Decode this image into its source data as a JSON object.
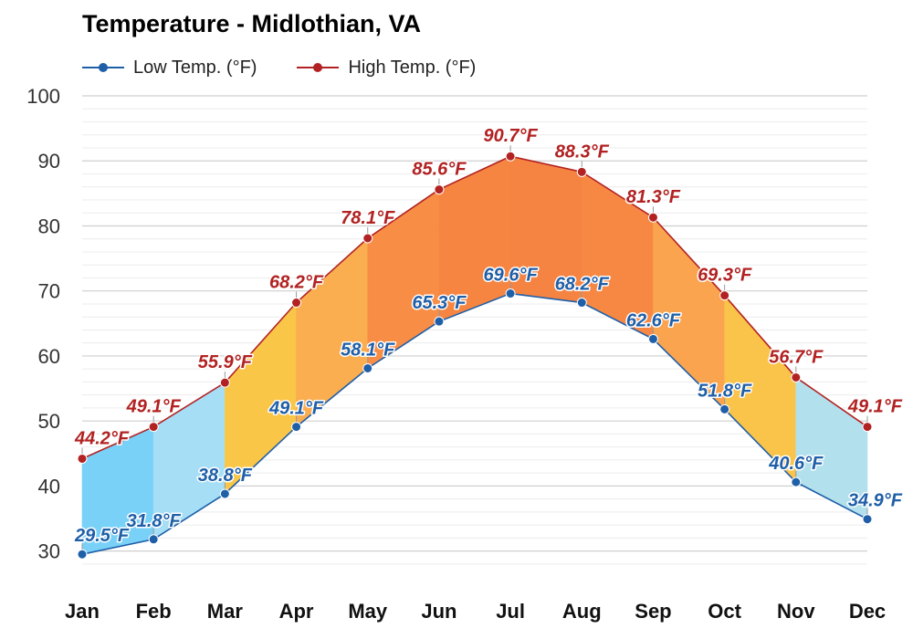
{
  "chart_data": {
    "type": "line",
    "title": "Temperature - Midlothian, VA",
    "categories": [
      "Jan",
      "Feb",
      "Mar",
      "Apr",
      "May",
      "Jun",
      "Jul",
      "Aug",
      "Sep",
      "Oct",
      "Nov",
      "Dec"
    ],
    "series": [
      {
        "name": "Low Temp. (°F)",
        "color": "#1f5fa8",
        "values": [
          29.5,
          31.8,
          38.8,
          49.1,
          58.1,
          65.3,
          69.6,
          68.2,
          62.6,
          51.8,
          40.6,
          34.9
        ],
        "labels": [
          "29.5°F",
          "31.8°F",
          "38.8°F",
          "49.1°F",
          "58.1°F",
          "65.3°F",
          "69.6°F",
          "68.2°F",
          "62.6°F",
          "51.8°F",
          "40.6°F",
          "34.9°F"
        ]
      },
      {
        "name": "High Temp. (°F)",
        "color": "#b22222",
        "values": [
          44.2,
          49.1,
          55.9,
          68.2,
          78.1,
          85.6,
          90.7,
          88.3,
          81.3,
          69.3,
          56.7,
          49.1
        ],
        "labels": [
          "44.2°F",
          "49.1°F",
          "55.9°F",
          "68.2°F",
          "78.1°F",
          "85.6°F",
          "90.7°F",
          "88.3°F",
          "81.3°F",
          "69.3°F",
          "56.7°F",
          "49.1°F"
        ]
      }
    ],
    "ylim": [
      27,
      100
    ],
    "yticks": [
      30,
      40,
      50,
      60,
      70,
      80,
      90,
      100
    ],
    "grid": true,
    "legend_placement": "top-left",
    "band_fill": "monthly colour band between low and high, colour keyed to average temperature (blue cold, yellow mild, orange hot)"
  }
}
